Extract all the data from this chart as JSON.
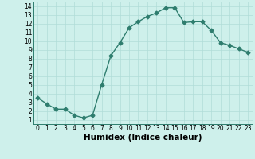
{
  "x": [
    0,
    1,
    2,
    3,
    4,
    5,
    6,
    7,
    8,
    9,
    10,
    11,
    12,
    13,
    14,
    15,
    16,
    17,
    18,
    19,
    20,
    21,
    22,
    23
  ],
  "y": [
    3.5,
    2.8,
    2.2,
    2.2,
    1.5,
    1.2,
    1.5,
    5.0,
    8.3,
    9.8,
    11.5,
    12.2,
    12.8,
    13.2,
    13.8,
    13.8,
    12.1,
    12.2,
    12.2,
    11.2,
    9.8,
    9.5,
    9.1,
    8.7
  ],
  "line_color": "#2e7d6e",
  "marker": "D",
  "markersize": 2.5,
  "linewidth": 1.0,
  "bg_color": "#cef0eb",
  "grid_color": "#b0ddd8",
  "xlabel": "Humidex (Indice chaleur)",
  "xlim": [
    -0.5,
    23.5
  ],
  "ylim": [
    0.5,
    14.5
  ],
  "xticks": [
    0,
    1,
    2,
    3,
    4,
    5,
    6,
    7,
    8,
    9,
    10,
    11,
    12,
    13,
    14,
    15,
    16,
    17,
    18,
    19,
    20,
    21,
    22,
    23
  ],
  "yticks": [
    1,
    2,
    3,
    4,
    5,
    6,
    7,
    8,
    9,
    10,
    11,
    12,
    13,
    14
  ],
  "tick_fontsize": 5.5,
  "xlabel_fontsize": 7.5
}
